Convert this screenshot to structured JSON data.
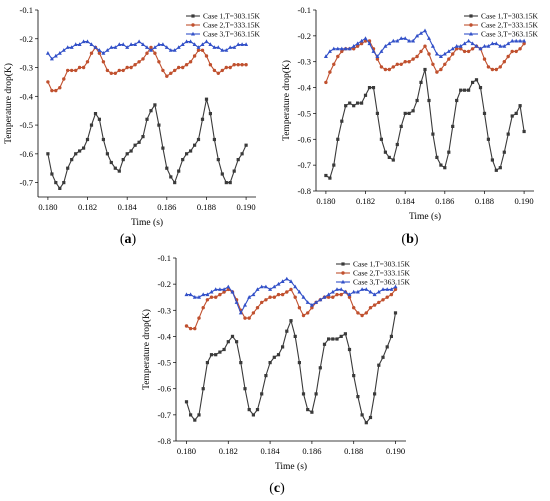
{
  "colors": {
    "case1": "#3a3a3a",
    "case2": "#c0502e",
    "case3": "#3250c8"
  },
  "chart_data": [
    {
      "type": "line",
      "panel_label": "a",
      "xlabel": "Time (s)",
      "ylabel": "Temperature drop(K)",
      "xlim": [
        0.1795,
        0.1905
      ],
      "ylim": [
        -0.75,
        -0.1
      ],
      "xticks": [
        0.18,
        0.182,
        0.184,
        0.186,
        0.188,
        0.19
      ],
      "yticks": [
        -0.7,
        -0.6,
        -0.5,
        -0.4,
        -0.3,
        -0.2,
        -0.1
      ],
      "tick_labels_x": [
        "0.180",
        "0.182",
        "0.184",
        "0.186",
        "0.188",
        "0.190"
      ],
      "tick_labels_y": [
        "-0.7",
        "-0.6",
        "-0.5",
        "-0.4",
        "-0.3",
        "-0.2",
        "-0.1"
      ],
      "legend_position": "top-right",
      "x_start": 0.18,
      "x_step": 0.0002,
      "series": [
        {
          "name": "Case 1,T=303.15K",
          "color_key": "case1",
          "values": [
            -0.6,
            -0.67,
            -0.7,
            -0.72,
            -0.7,
            -0.65,
            -0.62,
            -0.6,
            -0.59,
            -0.58,
            -0.55,
            -0.5,
            -0.46,
            -0.48,
            -0.55,
            -0.6,
            -0.63,
            -0.65,
            -0.66,
            -0.62,
            -0.6,
            -0.59,
            -0.57,
            -0.56,
            -0.54,
            -0.48,
            -0.45,
            -0.43,
            -0.5,
            -0.58,
            -0.65,
            -0.68,
            -0.7,
            -0.66,
            -0.62,
            -0.6,
            -0.59,
            -0.57,
            -0.55,
            -0.48,
            -0.41,
            -0.46,
            -0.55,
            -0.62,
            -0.67,
            -0.7,
            -0.7,
            -0.66,
            -0.62,
            -0.6,
            -0.57
          ]
        },
        {
          "name": "Case 2,T=333.15K",
          "color_key": "case2",
          "values": [
            -0.35,
            -0.38,
            -0.38,
            -0.37,
            -0.34,
            -0.31,
            -0.31,
            -0.31,
            -0.3,
            -0.3,
            -0.28,
            -0.25,
            -0.23,
            -0.25,
            -0.28,
            -0.31,
            -0.32,
            -0.32,
            -0.31,
            -0.31,
            -0.3,
            -0.3,
            -0.29,
            -0.28,
            -0.27,
            -0.25,
            -0.23,
            -0.25,
            -0.28,
            -0.31,
            -0.33,
            -0.32,
            -0.31,
            -0.3,
            -0.3,
            -0.29,
            -0.28,
            -0.26,
            -0.24,
            -0.24,
            -0.26,
            -0.29,
            -0.31,
            -0.32,
            -0.31,
            -0.3,
            -0.3,
            -0.29,
            -0.29,
            -0.29,
            -0.29
          ]
        },
        {
          "name": "Case 3,T=363.15K",
          "color_key": "case3",
          "values": [
            -0.25,
            -0.27,
            -0.26,
            -0.25,
            -0.24,
            -0.23,
            -0.23,
            -0.22,
            -0.22,
            -0.21,
            -0.21,
            -0.22,
            -0.23,
            -0.24,
            -0.25,
            -0.24,
            -0.23,
            -0.23,
            -0.22,
            -0.22,
            -0.23,
            -0.22,
            -0.22,
            -0.21,
            -0.22,
            -0.23,
            -0.24,
            -0.23,
            -0.22,
            -0.22,
            -0.23,
            -0.24,
            -0.24,
            -0.23,
            -0.22,
            -0.21,
            -0.21,
            -0.22,
            -0.23,
            -0.22,
            -0.21,
            -0.22,
            -0.23,
            -0.23,
            -0.24,
            -0.24,
            -0.23,
            -0.23,
            -0.22,
            -0.22,
            -0.22
          ]
        }
      ]
    },
    {
      "type": "line",
      "panel_label": "b",
      "xlabel": "Time (s)",
      "ylabel": "Temperature drop(K)",
      "xlim": [
        0.1795,
        0.1905
      ],
      "ylim": [
        -0.8,
        -0.1
      ],
      "xticks": [
        0.18,
        0.182,
        0.184,
        0.186,
        0.188,
        0.19
      ],
      "yticks": [
        -0.8,
        -0.7,
        -0.6,
        -0.5,
        -0.4,
        -0.3,
        -0.2,
        -0.1
      ],
      "tick_labels_x": [
        "0.180",
        "0.182",
        "0.184",
        "0.186",
        "0.188",
        "0.190"
      ],
      "tick_labels_y": [
        "-0.8",
        "-0.7",
        "-0.6",
        "-0.5",
        "-0.4",
        "-0.3",
        "-0.2",
        "-0.1"
      ],
      "legend_position": "top-right",
      "x_start": 0.18,
      "x_step": 0.0002,
      "series": [
        {
          "name": "Case 1,T=303.15K",
          "color_key": "case1",
          "values": [
            -0.74,
            -0.75,
            -0.7,
            -0.6,
            -0.53,
            -0.47,
            -0.46,
            -0.47,
            -0.46,
            -0.46,
            -0.43,
            -0.4,
            -0.4,
            -0.5,
            -0.6,
            -0.65,
            -0.67,
            -0.68,
            -0.62,
            -0.55,
            -0.5,
            -0.5,
            -0.49,
            -0.45,
            -0.38,
            -0.33,
            -0.45,
            -0.58,
            -0.67,
            -0.7,
            -0.71,
            -0.65,
            -0.55,
            -0.45,
            -0.41,
            -0.41,
            -0.41,
            -0.38,
            -0.37,
            -0.4,
            -0.5,
            -0.6,
            -0.68,
            -0.72,
            -0.71,
            -0.65,
            -0.58,
            -0.51,
            -0.5,
            -0.47,
            -0.57
          ]
        },
        {
          "name": "Case 2,T=333.15K",
          "color_key": "case2",
          "values": [
            -0.38,
            -0.34,
            -0.31,
            -0.28,
            -0.26,
            -0.25,
            -0.25,
            -0.25,
            -0.24,
            -0.23,
            -0.22,
            -0.22,
            -0.25,
            -0.29,
            -0.32,
            -0.33,
            -0.33,
            -0.32,
            -0.31,
            -0.31,
            -0.3,
            -0.3,
            -0.29,
            -0.28,
            -0.26,
            -0.24,
            -0.27,
            -0.31,
            -0.34,
            -0.33,
            -0.31,
            -0.29,
            -0.27,
            -0.25,
            -0.25,
            -0.26,
            -0.26,
            -0.25,
            -0.24,
            -0.25,
            -0.29,
            -0.32,
            -0.33,
            -0.33,
            -0.32,
            -0.3,
            -0.28,
            -0.26,
            -0.26,
            -0.25,
            -0.23
          ]
        },
        {
          "name": "Case 3,T=363.15K",
          "color_key": "case3",
          "values": [
            -0.28,
            -0.26,
            -0.25,
            -0.25,
            -0.25,
            -0.25,
            -0.25,
            -0.24,
            -0.23,
            -0.22,
            -0.21,
            -0.23,
            -0.26,
            -0.28,
            -0.26,
            -0.24,
            -0.23,
            -0.22,
            -0.22,
            -0.21,
            -0.21,
            -0.22,
            -0.22,
            -0.2,
            -0.19,
            -0.18,
            -0.21,
            -0.24,
            -0.27,
            -0.28,
            -0.27,
            -0.26,
            -0.25,
            -0.24,
            -0.24,
            -0.23,
            -0.22,
            -0.23,
            -0.24,
            -0.25,
            -0.24,
            -0.24,
            -0.23,
            -0.23,
            -0.24,
            -0.24,
            -0.23,
            -0.22,
            -0.22,
            -0.22,
            -0.22
          ]
        }
      ]
    },
    {
      "type": "line",
      "panel_label": "c",
      "xlabel": "Time (s)",
      "ylabel": "Temperature drop(K)",
      "xlim": [
        0.1795,
        0.1905
      ],
      "ylim": [
        -0.8,
        -0.1
      ],
      "xticks": [
        0.18,
        0.182,
        0.184,
        0.186,
        0.188,
        0.19
      ],
      "yticks": [
        -0.8,
        -0.7,
        -0.6,
        -0.5,
        -0.4,
        -0.3,
        -0.2,
        -0.1
      ],
      "tick_labels_x": [
        "0.180",
        "0.182",
        "0.184",
        "0.186",
        "0.188",
        "0.190"
      ],
      "tick_labels_y": [
        "-0.8",
        "-0.7",
        "-0.6",
        "-0.5",
        "-0.4",
        "-0.3",
        "-0.2",
        "-0.1"
      ],
      "legend_position": "top-right",
      "x_start": 0.18,
      "x_step": 0.0002,
      "series": [
        {
          "name": "Case 1,T=303.15K",
          "color_key": "case1",
          "values": [
            -0.65,
            -0.7,
            -0.72,
            -0.7,
            -0.6,
            -0.5,
            -0.47,
            -0.47,
            -0.46,
            -0.45,
            -0.42,
            -0.4,
            -0.42,
            -0.5,
            -0.6,
            -0.68,
            -0.7,
            -0.68,
            -0.62,
            -0.55,
            -0.5,
            -0.48,
            -0.47,
            -0.44,
            -0.38,
            -0.34,
            -0.4,
            -0.5,
            -0.62,
            -0.68,
            -0.69,
            -0.62,
            -0.52,
            -0.43,
            -0.41,
            -0.41,
            -0.41,
            -0.4,
            -0.39,
            -0.45,
            -0.55,
            -0.63,
            -0.7,
            -0.73,
            -0.71,
            -0.62,
            -0.51,
            -0.48,
            -0.44,
            -0.4,
            -0.31
          ]
        },
        {
          "name": "Case 2,T=333.15K",
          "color_key": "case2",
          "values": [
            -0.36,
            -0.37,
            -0.37,
            -0.33,
            -0.29,
            -0.26,
            -0.25,
            -0.25,
            -0.24,
            -0.23,
            -0.22,
            -0.23,
            -0.26,
            -0.3,
            -0.33,
            -0.33,
            -0.31,
            -0.29,
            -0.27,
            -0.26,
            -0.25,
            -0.25,
            -0.24,
            -0.24,
            -0.23,
            -0.22,
            -0.25,
            -0.29,
            -0.32,
            -0.31,
            -0.29,
            -0.27,
            -0.26,
            -0.25,
            -0.25,
            -0.25,
            -0.24,
            -0.24,
            -0.23,
            -0.25,
            -0.29,
            -0.31,
            -0.32,
            -0.31,
            -0.29,
            -0.28,
            -0.27,
            -0.26,
            -0.25,
            -0.24,
            -0.22
          ]
        },
        {
          "name": "Case 3,T=363.15K",
          "color_key": "case3",
          "values": [
            -0.24,
            -0.24,
            -0.25,
            -0.25,
            -0.24,
            -0.24,
            -0.23,
            -0.22,
            -0.22,
            -0.22,
            -0.21,
            -0.23,
            -0.27,
            -0.31,
            -0.28,
            -0.25,
            -0.24,
            -0.22,
            -0.21,
            -0.21,
            -0.22,
            -0.21,
            -0.2,
            -0.19,
            -0.18,
            -0.19,
            -0.21,
            -0.23,
            -0.25,
            -0.27,
            -0.28,
            -0.27,
            -0.26,
            -0.25,
            -0.24,
            -0.23,
            -0.22,
            -0.22,
            -0.23,
            -0.24,
            -0.23,
            -0.23,
            -0.22,
            -0.22,
            -0.23,
            -0.24,
            -0.23,
            -0.22,
            -0.22,
            -0.22,
            -0.21
          ]
        }
      ]
    }
  ]
}
